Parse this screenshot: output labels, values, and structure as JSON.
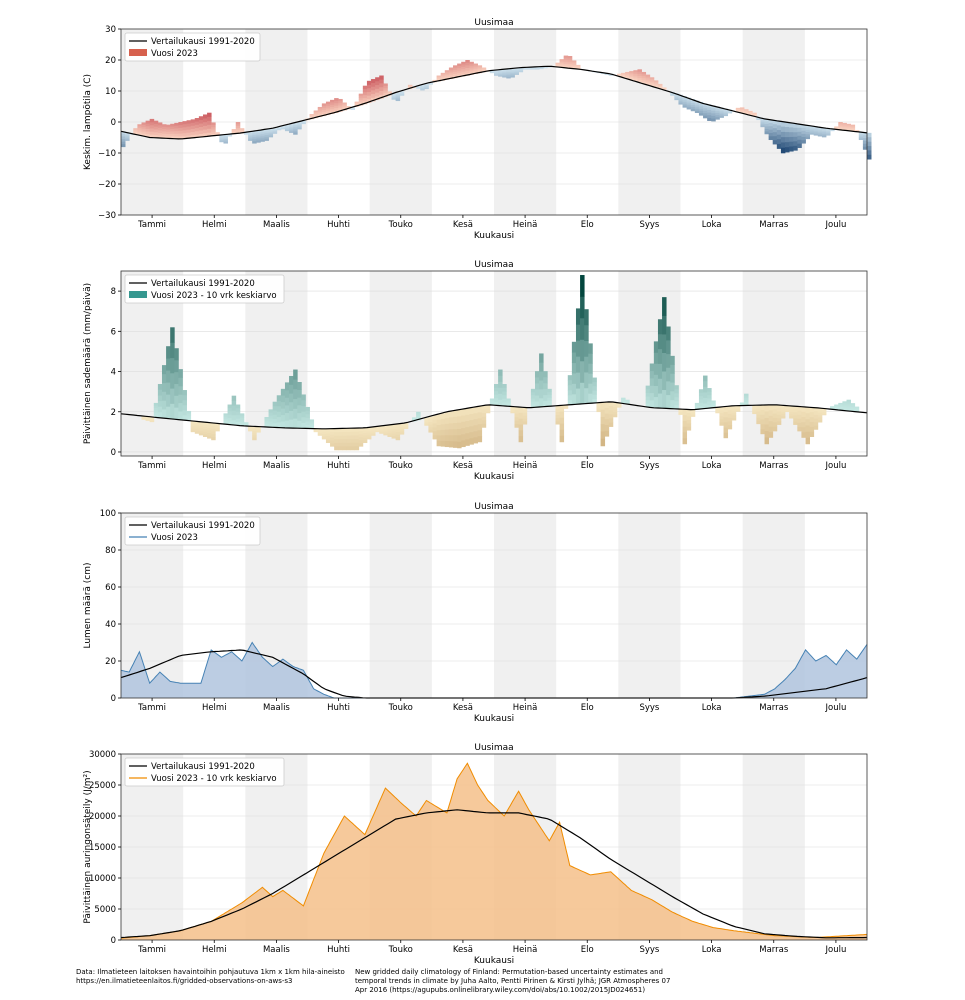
{
  "months": [
    "Tammi",
    "Helmi",
    "Maalis",
    "Huhti",
    "Touko",
    "Kesä",
    "Heinä",
    "Elo",
    "Syys",
    "Loka",
    "Marras",
    "Joulu"
  ],
  "xlabel": "Kuukausi",
  "footer": {
    "left": [
      "Data: Ilmatieteen laitoksen havaintoihin pohjautuva 1km x 1km hila-aineisto",
      "https://en.ilmatieteenlaitos.fi/gridded-observations-on-aws-s3"
    ],
    "right": [
      "New gridded daily climatology of Finland: Permutation-based uncertainty estimates and",
      "temporal trends in climate by Juha Aalto, Pentti Pirinen & Kirsti Jylhä; JGR Atmospheres 07",
      "Apr 2016 (https://agupubs.onlinelibrary.wiley.com/doi/abs/10.1002/2015JD024651)"
    ]
  },
  "chart_data": [
    {
      "type": "bar",
      "title": "Uusimaa",
      "ylabel": "Keskim. lampötila (C)",
      "xlabel": "Kuukausi",
      "ylim": [
        -30,
        30
      ],
      "yticks": [
        -30,
        -20,
        -10,
        0,
        10,
        20,
        30
      ],
      "legend": {
        "placement": "top-left",
        "entries": [
          "Vertailukausi 1991-2020",
          "Vuosi 2023"
        ]
      },
      "colors": {
        "warm": "#d6604d",
        "cold": "#2166ac",
        "line": "#000000"
      },
      "series": [
        {
          "name": "Vertailukausi 1991-2020",
          "x_day": [
            1,
            15,
            30,
            45,
            60,
            75,
            90,
            105,
            120,
            135,
            150,
            165,
            180,
            195,
            210,
            225,
            240,
            255,
            270,
            285,
            300,
            315,
            330,
            345,
            365
          ],
          "values": [
            -3,
            -5,
            -5.5,
            -4.5,
            -3.5,
            -2,
            0.5,
            3,
            6,
            9.5,
            12.5,
            14.5,
            16.5,
            17.5,
            18,
            17,
            15.5,
            12.5,
            9.5,
            6,
            3.5,
            1,
            -0.5,
            -2,
            -3.5
          ]
        },
        {
          "name": "Vuosi 2023",
          "x_day": [
            1,
            8,
            15,
            22,
            29,
            36,
            43,
            50,
            57,
            64,
            71,
            78,
            85,
            92,
            99,
            106,
            113,
            120,
            127,
            134,
            141,
            148,
            155,
            162,
            169,
            176,
            183,
            190,
            197,
            204,
            211,
            218,
            225,
            232,
            239,
            246,
            253,
            260,
            267,
            274,
            281,
            288,
            295,
            302,
            309,
            316,
            323,
            330,
            337,
            344,
            351,
            358,
            365
          ],
          "values": [
            -8,
            -1,
            1,
            -1,
            0,
            1,
            3,
            -8,
            0,
            -7,
            -6,
            -2,
            -4,
            2,
            6,
            8,
            4,
            13,
            15,
            6,
            12,
            10,
            15,
            18,
            20,
            18,
            15,
            14,
            17,
            17,
            18,
            22,
            17,
            16,
            15,
            16,
            17,
            14,
            10,
            5,
            3,
            0,
            2,
            5,
            3,
            -5,
            -10,
            -9,
            -4,
            -5,
            0,
            -1,
            -12
          ]
        }
      ]
    },
    {
      "type": "bar",
      "title": "Uusimaa",
      "ylabel": "Päivittäinen sademäärä (mm/päivä)",
      "xlabel": "Kuukausi",
      "ylim": [
        -0.2,
        9
      ],
      "yticks": [
        0,
        2,
        4,
        6,
        8
      ],
      "legend": {
        "placement": "top-left",
        "entries": [
          "Vertailukausi 1991-2020",
          "Vuosi 2023 - 10 vrk keskiarvo"
        ]
      },
      "colors": {
        "wet": "#35978f",
        "dry": "#bf812d",
        "line": "#000000"
      },
      "series": [
        {
          "name": "Vertailukausi 1991-2020",
          "x_day": [
            1,
            20,
            40,
            60,
            80,
            100,
            120,
            140,
            160,
            180,
            200,
            220,
            240,
            260,
            280,
            300,
            320,
            340,
            365
          ],
          "values": [
            1.9,
            1.7,
            1.5,
            1.3,
            1.2,
            1.15,
            1.2,
            1.45,
            2.0,
            2.35,
            2.2,
            2.35,
            2.5,
            2.2,
            2.1,
            2.3,
            2.35,
            2.2,
            1.95
          ]
        },
        {
          "name": "Vuosi 2023 - 10 vrk keskiarvo",
          "x_day": [
            5,
            15,
            25,
            35,
            45,
            55,
            65,
            75,
            85,
            95,
            105,
            115,
            125,
            135,
            145,
            155,
            165,
            175,
            185,
            195,
            205,
            215,
            225,
            235,
            245,
            255,
            265,
            275,
            285,
            295,
            305,
            315,
            325,
            335,
            345,
            355,
            362
          ],
          "values": [
            1.8,
            1.5,
            6.2,
            1.0,
            0.6,
            2.8,
            0.6,
            2.5,
            4.1,
            1.0,
            0.1,
            0.1,
            1.0,
            0.6,
            2.0,
            0.3,
            0.2,
            0.5,
            4.1,
            0.5,
            4.9,
            0.5,
            8.8,
            0.3,
            2.7,
            2.2,
            7.7,
            0.4,
            3.8,
            0.7,
            2.9,
            0.4,
            2.0,
            0.4,
            2.2,
            2.6,
            2.0
          ]
        }
      ]
    },
    {
      "type": "area",
      "title": "Uusimaa",
      "ylabel": "Lumen määrä (cm)",
      "xlabel": "Kuukausi",
      "ylim": [
        0,
        100
      ],
      "yticks": [
        0,
        20,
        40,
        60,
        80,
        100
      ],
      "legend": {
        "placement": "top-left",
        "entries": [
          "Vertailukausi 1991-2020",
          "Vuosi 2023"
        ]
      },
      "colors": {
        "fill": "#b0c4de",
        "line2023": "#4682b4",
        "line": "#000000"
      },
      "series": [
        {
          "name": "Vertailukausi 1991-2020",
          "x_day": [
            1,
            15,
            30,
            45,
            60,
            75,
            90,
            100,
            110,
            120,
            200,
            300,
            315,
            330,
            345,
            365
          ],
          "values": [
            11,
            16,
            23,
            25,
            26,
            22,
            13,
            5,
            1,
            0,
            0,
            0,
            1,
            3,
            5,
            11
          ]
        },
        {
          "name": "Vuosi 2023",
          "x_day": [
            1,
            5,
            10,
            15,
            20,
            25,
            30,
            40,
            45,
            50,
            55,
            60,
            65,
            70,
            75,
            80,
            85,
            90,
            95,
            100,
            105,
            110,
            300,
            315,
            320,
            325,
            330,
            335,
            340,
            345,
            350,
            355,
            360,
            365
          ],
          "values": [
            15,
            14,
            25,
            8,
            14,
            9,
            8,
            8,
            26,
            22,
            25,
            20,
            30,
            22,
            17,
            21,
            17,
            15,
            5,
            2,
            0,
            0,
            0,
            2,
            5,
            10,
            16,
            26,
            20,
            23,
            18,
            26,
            21,
            29
          ]
        }
      ]
    },
    {
      "type": "area",
      "title": "Uusimaa",
      "ylabel": "Päivittäinen auringonsäteily (J/m²)",
      "xlabel": "Kuukausi",
      "ylim": [
        0,
        30000
      ],
      "yticks": [
        0,
        5000,
        10000,
        15000,
        20000,
        25000,
        30000
      ],
      "legend": {
        "placement": "top-left",
        "entries": [
          "Vertailukausi 1991-2020",
          "Vuosi 2023 - 10 vrk keskiarvo"
        ]
      },
      "colors": {
        "fill": "#f5c08a",
        "line2023": "#f08c00",
        "line": "#000000"
      },
      "series": [
        {
          "name": "Vertailukausi 1991-2020",
          "x_day": [
            1,
            15,
            30,
            45,
            60,
            75,
            90,
            105,
            120,
            135,
            150,
            165,
            180,
            195,
            210,
            225,
            240,
            255,
            270,
            285,
            300,
            315,
            330,
            345,
            365
          ],
          "values": [
            400,
            700,
            1500,
            3000,
            5000,
            7500,
            10500,
            13500,
            16500,
            19500,
            20500,
            21000,
            20500,
            20500,
            19500,
            16500,
            13000,
            10000,
            7000,
            4200,
            2200,
            1000,
            600,
            350,
            400
          ]
        },
        {
          "name": "Vuosi 2023 - 10 vrk keskiarvo",
          "x_day": [
            1,
            15,
            30,
            45,
            60,
            70,
            75,
            80,
            90,
            100,
            110,
            120,
            130,
            138,
            145,
            150,
            160,
            165,
            170,
            175,
            180,
            188,
            195,
            200,
            210,
            215,
            220,
            230,
            240,
            250,
            260,
            270,
            280,
            290,
            300,
            320,
            340,
            365
          ],
          "values": [
            300,
            700,
            1500,
            3000,
            6000,
            8500,
            7000,
            8000,
            5500,
            14000,
            20000,
            17000,
            24500,
            22000,
            20000,
            22500,
            20500,
            26000,
            28500,
            25000,
            22500,
            20000,
            24000,
            21000,
            16000,
            19000,
            12000,
            10500,
            11000,
            8000,
            6500,
            4500,
            3000,
            2000,
            1500,
            700,
            400,
            900
          ]
        }
      ]
    }
  ]
}
